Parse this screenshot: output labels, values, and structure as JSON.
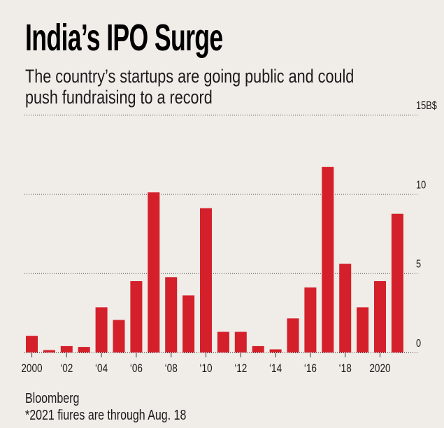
{
  "title": "India’s IPO Surge",
  "subtitle_lines": [
    "The country’s startups are going public and could",
    "push fundraising to a record"
  ],
  "footer": {
    "source": "Bloomberg",
    "note": "*2021 fiures are through Aug. 18"
  },
  "colors": {
    "bar": "#d4202a",
    "background": "#f0ece8",
    "text": "#111111",
    "grid": "#333333"
  },
  "chart_data": {
    "type": "bar",
    "title": "India’s IPO Surge",
    "subtitle": "The country’s startups are going public and could push fundraising to a record",
    "xlabel": "",
    "ylabel": "B$",
    "unit_label": "15B$",
    "ylim": [
      0,
      15
    ],
    "yticks": [
      0,
      5,
      10,
      15
    ],
    "ytick_labels": [
      "0",
      "5",
      "10",
      "15B$"
    ],
    "y_axis_side": "right",
    "grid": true,
    "categories": [
      "2000",
      "2001",
      "2002",
      "2003",
      "2004",
      "2005",
      "2006",
      "2007",
      "2008",
      "2009",
      "2010",
      "2011",
      "2012",
      "2013",
      "2014",
      "2015",
      "2016",
      "2017",
      "2018",
      "2019",
      "2020",
      "2021"
    ],
    "values": [
      1.05,
      0.15,
      0.4,
      0.35,
      2.85,
      2.05,
      4.5,
      10.1,
      4.75,
      3.6,
      9.1,
      1.3,
      1.3,
      0.4,
      0.2,
      2.15,
      4.1,
      11.7,
      5.6,
      2.85,
      4.5,
      8.75
    ],
    "xtick_labels": [
      {
        "category": "2000",
        "label": "2000"
      },
      {
        "category": "2002",
        "label": "‘02"
      },
      {
        "category": "2004",
        "label": "‘04"
      },
      {
        "category": "2006",
        "label": "‘06"
      },
      {
        "category": "2008",
        "label": "‘08"
      },
      {
        "category": "2010",
        "label": "‘10"
      },
      {
        "category": "2012",
        "label": "‘12"
      },
      {
        "category": "2014",
        "label": "‘14"
      },
      {
        "category": "2016",
        "label": "‘16"
      },
      {
        "category": "2018",
        "label": "‘18"
      },
      {
        "category": "2020",
        "label": "2020"
      }
    ],
    "source": "Bloomberg",
    "annotation": "*2021 fiures are through Aug. 18"
  }
}
